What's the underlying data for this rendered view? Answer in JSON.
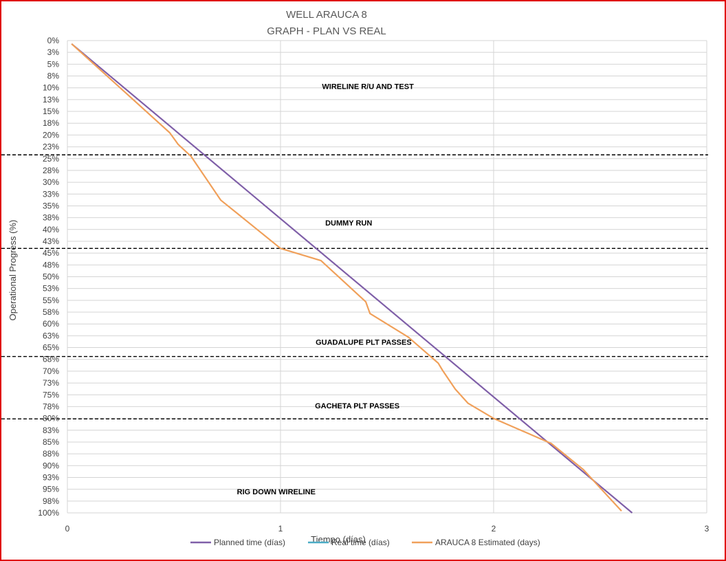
{
  "chart_data": {
    "type": "line",
    "title": "WELL ARAUCA 8",
    "subtitle": "GRAPH  - PLAN VS REAL",
    "xlabel": "Tiempo (días)",
    "ylabel": "Operational Progress (%)",
    "xlim": [
      0,
      3
    ],
    "ylim": [
      0,
      100
    ],
    "y_inverted": true,
    "grid": true,
    "x_ticks": [
      "0",
      "1",
      "2",
      "3"
    ],
    "y_ticks": [
      "0%",
      "3%",
      "5%",
      "8%",
      "10%",
      "13%",
      "15%",
      "18%",
      "20%",
      "23%",
      "25%",
      "28%",
      "30%",
      "33%",
      "35%",
      "38%",
      "40%",
      "43%",
      "45%",
      "48%",
      "50%",
      "53%",
      "55%",
      "58%",
      "60%",
      "63%",
      "65%",
      "68%",
      "70%",
      "73%",
      "75%",
      "78%",
      "80%",
      "83%",
      "85%",
      "88%",
      "90%",
      "93%",
      "95%",
      "98%",
      "100%"
    ],
    "legend_position": "bottom",
    "series": [
      {
        "name": "Planned time (días)",
        "color": "#7f5fa8",
        "x": [
          0.02,
          2.65
        ],
        "y": [
          0.7,
          100
        ]
      },
      {
        "name": "Real time (días)",
        "color": "#4bacc6",
        "x": [],
        "y": []
      },
      {
        "name": "ARAUCA 8 Estimated (days)",
        "color": "#f0a05a",
        "x": [
          0.02,
          0.48,
          0.52,
          0.58,
          0.72,
          0.8,
          1.0,
          1.19,
          1.4,
          1.42,
          1.6,
          1.74,
          1.76,
          1.82,
          1.88,
          2.0,
          2.27,
          2.42,
          2.6
        ],
        "y": [
          0.7,
          19.5,
          22.0,
          24.5,
          33.8,
          36.7,
          44.0,
          46.6,
          55.3,
          57.8,
          62.8,
          68.3,
          69.8,
          73.8,
          76.8,
          80.0,
          85.3,
          90.8,
          99.6
        ]
      }
    ],
    "annotations": [
      {
        "text": "WIRELINE R/U AND TEST",
        "x": 1.41,
        "y": 9.7
      },
      {
        "text": "DUMMY RUN",
        "x": 1.32,
        "y": 38.6
      },
      {
        "text": "GUADALUPE PLT PASSES",
        "x": 1.39,
        "y": 63.8
      },
      {
        "text": "GACHETA PLT PASSES",
        "x": 1.36,
        "y": 77.3
      },
      {
        "text": "RIG DOWN WIRELINE",
        "x": 0.98,
        "y": 95.5
      }
    ],
    "reference_lines": [
      24.2,
      44.0,
      66.9,
      80.1
    ]
  }
}
